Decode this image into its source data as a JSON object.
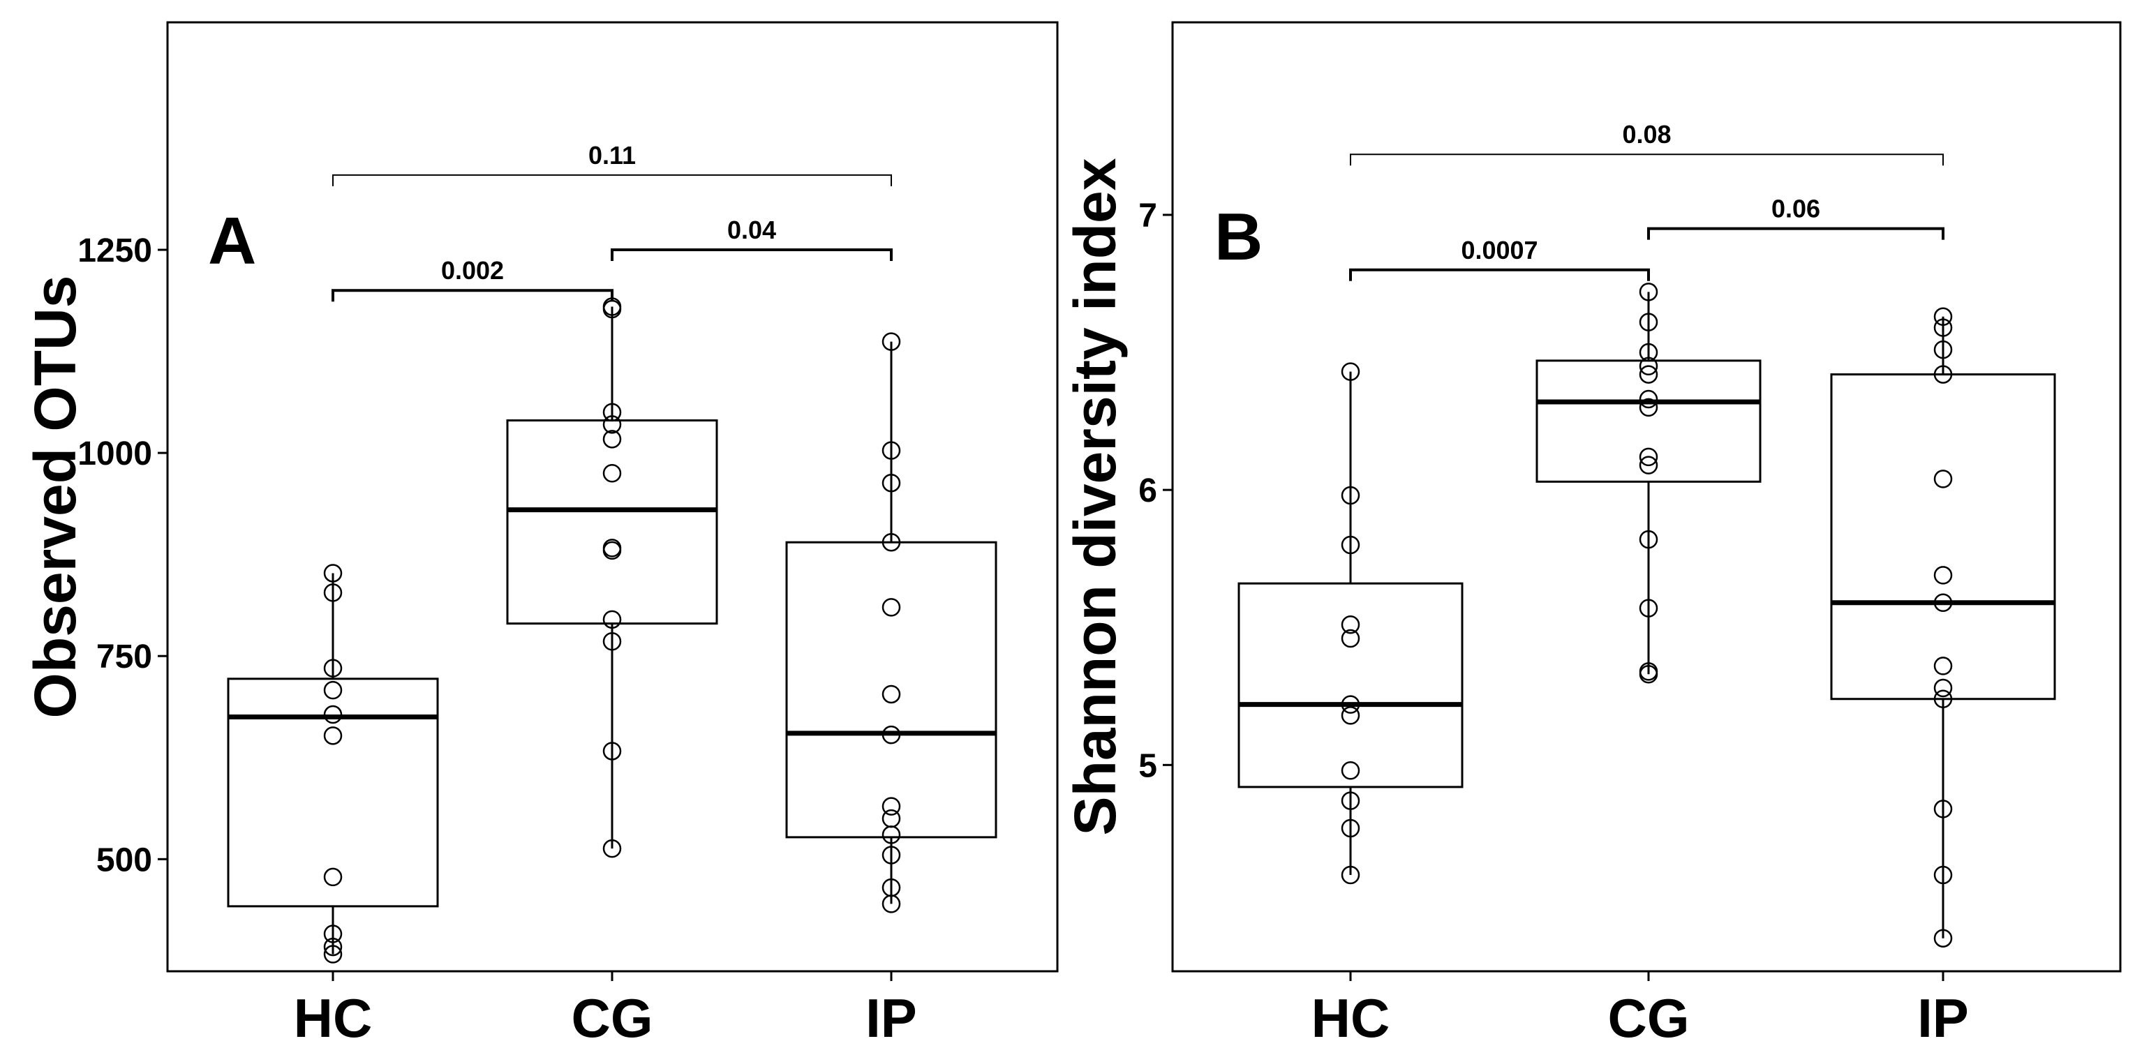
{
  "chart_data": [
    {
      "type": "box",
      "panel_label": "A",
      "xlabel": "",
      "ylabel": "Observed OTUs",
      "categories": [
        "HC",
        "CG",
        "IP"
      ],
      "ylim": [
        362,
        1530
      ],
      "yticks": [
        500,
        750,
        1000,
        1250
      ],
      "grid": false,
      "boxes": [
        {
          "category": "HC",
          "q1": 442,
          "median": 675,
          "q3": 722,
          "whisker_low": 383,
          "whisker_high": 852,
          "points": [
            852,
            828,
            735,
            708,
            678,
            652,
            478,
            408,
            392,
            383
          ]
        },
        {
          "category": "CG",
          "q1": 790,
          "median": 930,
          "q3": 1040,
          "whisker_low": 513,
          "whisker_high": 1180,
          "points": [
            1180,
            1177,
            1050,
            1035,
            1017,
            975,
            883,
            880,
            795,
            768,
            633,
            513
          ]
        },
        {
          "category": "IP",
          "q1": 527,
          "median": 655,
          "q3": 890,
          "whisker_low": 445,
          "whisker_high": 1137,
          "points": [
            1137,
            1003,
            963,
            890,
            810,
            703,
            653,
            565,
            550,
            530,
            505,
            465,
            445
          ]
        }
      ],
      "comparisons": [
        {
          "groups": [
            "HC",
            "CG"
          ],
          "p": "0.002",
          "y": 1200
        },
        {
          "groups": [
            "CG",
            "IP"
          ],
          "p": "0.04",
          "y": 1250
        },
        {
          "groups": [
            "HC",
            "IP"
          ],
          "p": "0.11",
          "y": 1342
        }
      ]
    },
    {
      "type": "box",
      "panel_label": "B",
      "xlabel": "",
      "ylabel": "Shannon diversity index",
      "categories": [
        "HC",
        "CG",
        "IP"
      ],
      "ylim": [
        4.25,
        7.7
      ],
      "yticks": [
        5,
        6,
        7
      ],
      "grid": false,
      "boxes": [
        {
          "category": "HC",
          "q1": 4.92,
          "median": 5.22,
          "q3": 5.66,
          "whisker_low": 4.6,
          "whisker_high": 6.43,
          "points": [
            6.43,
            5.98,
            5.8,
            5.51,
            5.46,
            5.22,
            5.18,
            4.98,
            4.87,
            4.77,
            4.6
          ]
        },
        {
          "category": "CG",
          "q1": 6.03,
          "median": 6.32,
          "q3": 6.47,
          "whisker_low": 5.33,
          "whisker_high": 6.72,
          "points": [
            6.72,
            6.61,
            6.5,
            6.45,
            6.42,
            6.33,
            6.3,
            6.12,
            6.09,
            5.82,
            5.57,
            5.34,
            5.33
          ]
        },
        {
          "category": "IP",
          "q1": 5.24,
          "median": 5.59,
          "q3": 6.42,
          "whisker_low": 4.37,
          "whisker_high": 6.63,
          "points": [
            6.63,
            6.59,
            6.51,
            6.42,
            6.04,
            5.69,
            5.59,
            5.36,
            5.28,
            5.24,
            4.84,
            4.6,
            4.37
          ]
        }
      ],
      "comparisons": [
        {
          "groups": [
            "HC",
            "CG"
          ],
          "p": "0.0007",
          "y": 6.8
        },
        {
          "groups": [
            "CG",
            "IP"
          ],
          "p": "0.06",
          "y": 6.95
        },
        {
          "groups": [
            "HC",
            "IP"
          ],
          "p": "0.08",
          "y": 7.22
        }
      ]
    }
  ]
}
